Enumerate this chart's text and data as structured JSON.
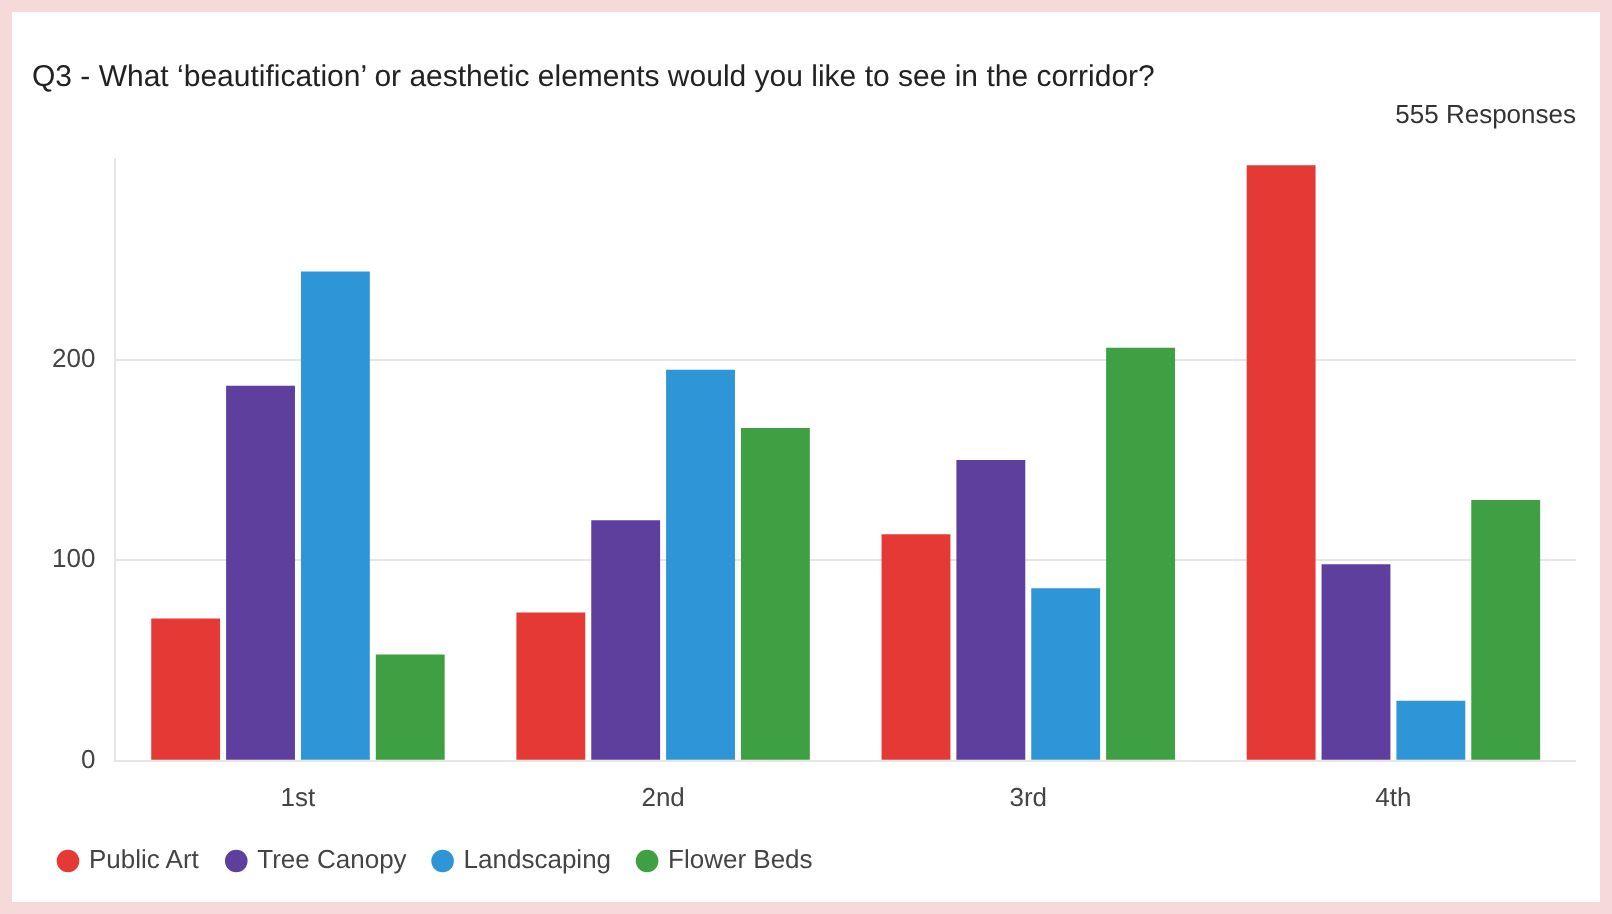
{
  "chart_data": {
    "type": "bar",
    "title": "Q3 - What ‘beautification’ or aesthetic elements would you like to see in the corridor?",
    "subtitle": "555 Responses",
    "categories": [
      "1st",
      "2nd",
      "3rd",
      "4th"
    ],
    "series": [
      {
        "name": "Public Art",
        "color": "#e53935",
        "values": [
          71,
          74,
          113,
          297
        ]
      },
      {
        "name": "Tree Canopy",
        "color": "#5e3f9e",
        "values": [
          187,
          120,
          150,
          98
        ]
      },
      {
        "name": "Landscaping",
        "color": "#2e96d6",
        "values": [
          244,
          195,
          86,
          30
        ]
      },
      {
        "name": "Flower Beds",
        "color": "#3ea043",
        "values": [
          53,
          166,
          206,
          130
        ]
      }
    ],
    "ylim": [
      0,
      300
    ],
    "yticks": [
      0,
      100,
      200
    ],
    "grid": "y",
    "legend": "bottom left"
  }
}
